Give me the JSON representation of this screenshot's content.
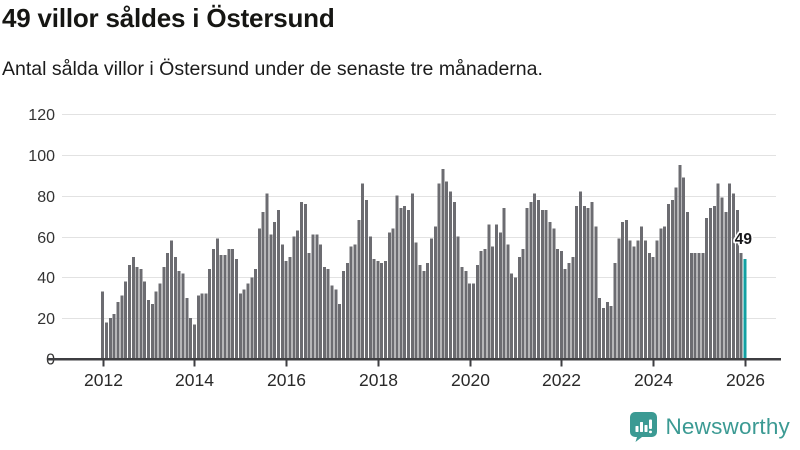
{
  "header": {
    "title": "49 villor såldes i Östersund",
    "subtitle": "Antal sålda villor i Östersund under de senaste tre månaderna."
  },
  "chart_data": {
    "type": "bar",
    "title": "49 villor såldes i Östersund",
    "xlabel": "",
    "ylabel": "",
    "x_start": "2012-01",
    "x_interval": "monthly",
    "x_tick_years": [
      2012,
      2014,
      2016,
      2018,
      2020,
      2022,
      2024,
      2026
    ],
    "y_ticks": [
      0,
      20,
      40,
      60,
      80,
      100,
      120
    ],
    "ylim": [
      0,
      120
    ],
    "grid": true,
    "values": [
      33,
      18,
      20,
      22,
      28,
      31,
      38,
      46,
      50,
      45,
      44,
      38,
      29,
      27,
      33,
      37,
      45,
      52,
      58,
      50,
      43,
      42,
      30,
      20,
      17,
      31,
      32,
      32,
      44,
      54,
      59,
      51,
      51,
      54,
      54,
      49,
      32,
      34,
      37,
      40,
      44,
      64,
      72,
      81,
      61,
      67,
      73,
      56,
      48,
      50,
      60,
      63,
      77,
      76,
      52,
      61,
      61,
      56,
      45,
      44,
      36,
      34,
      27,
      43,
      47,
      55,
      56,
      68,
      86,
      78,
      60,
      49,
      48,
      47,
      48,
      62,
      64,
      80,
      74,
      75,
      73,
      81,
      57,
      46,
      43,
      47,
      59,
      65,
      86,
      93,
      87,
      82,
      77,
      60,
      45,
      43,
      37,
      37,
      46,
      53,
      54,
      66,
      55,
      66,
      62,
      74,
      56,
      42,
      40,
      50,
      54,
      74,
      77,
      81,
      78,
      73,
      73,
      67,
      64,
      54,
      53,
      44,
      47,
      50,
      75,
      82,
      75,
      74,
      77,
      65,
      30,
      25,
      28,
      26,
      47,
      59,
      67,
      68,
      58,
      55,
      58,
      65,
      58,
      52,
      50,
      58,
      64,
      65,
      76,
      78,
      84,
      95,
      89,
      72,
      52,
      52,
      52,
      52,
      69,
      74,
      75,
      86,
      79,
      72,
      86,
      81,
      73,
      52,
      49
    ],
    "highlight_last": true,
    "annotation": {
      "text": "49"
    },
    "bar_color": "#6c6c71",
    "highlight_color": "#12a0a2",
    "grid_color": "#e2e2e2",
    "axis_color": "#3e3e41",
    "tick_label_color": "#333333"
  },
  "logo": {
    "text": "Newsworthy",
    "color": "#3b9a93",
    "icon": "newsworthy-chart-bubble-icon"
  }
}
